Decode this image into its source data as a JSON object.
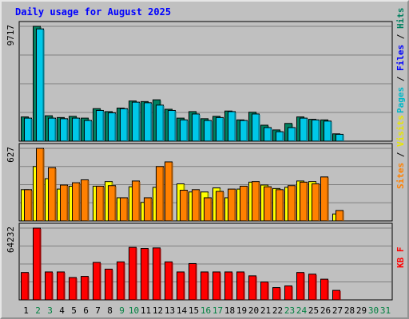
{
  "chart_data": {
    "type": "bar",
    "title": "Daily usage for August 2025",
    "days": [
      {
        "label": "1",
        "weekend": false
      },
      {
        "label": "2",
        "weekend": true
      },
      {
        "label": "3",
        "weekend": true
      },
      {
        "label": "4",
        "weekend": false
      },
      {
        "label": "5",
        "weekend": false
      },
      {
        "label": "6",
        "weekend": false
      },
      {
        "label": "7",
        "weekend": false
      },
      {
        "label": "8",
        "weekend": false
      },
      {
        "label": "9",
        "weekend": true
      },
      {
        "label": "10",
        "weekend": true
      },
      {
        "label": "11",
        "weekend": false
      },
      {
        "label": "12",
        "weekend": false
      },
      {
        "label": "13",
        "weekend": false
      },
      {
        "label": "14",
        "weekend": false
      },
      {
        "label": "15",
        "weekend": false
      },
      {
        "label": "16",
        "weekend": true
      },
      {
        "label": "17",
        "weekend": true
      },
      {
        "label": "18",
        "weekend": false
      },
      {
        "label": "19",
        "weekend": false
      },
      {
        "label": "20",
        "weekend": false
      },
      {
        "label": "21",
        "weekend": false
      },
      {
        "label": "22",
        "weekend": false
      },
      {
        "label": "23",
        "weekend": true
      },
      {
        "label": "24",
        "weekend": true
      },
      {
        "label": "25",
        "weekend": false
      },
      {
        "label": "26",
        "weekend": false
      },
      {
        "label": "27",
        "weekend": false
      },
      {
        "label": "28",
        "weekend": false
      },
      {
        "label": "29",
        "weekend": false
      },
      {
        "label": "30",
        "weekend": true
      },
      {
        "label": "31",
        "weekend": true
      }
    ],
    "panels": [
      {
        "id": "hits-files-pages",
        "max_label": "9717",
        "ymax": 9717,
        "legend": [
          {
            "text": "Pages",
            "color": "#00b8c8"
          },
          {
            "text": "Files",
            "color": "#0000ff"
          },
          {
            "text": "Hits",
            "color": "#008060"
          }
        ],
        "series": [
          {
            "name": "Hits",
            "color": "#008060",
            "values": [
              2050,
              9717,
              2150,
              2000,
              2100,
              1950,
              2750,
              2500,
              2800,
              3400,
              3350,
              3500,
              2700,
              1950,
              2500,
              1900,
              2100,
              2550,
              1800,
              2450,
              1350,
              950,
              1500,
              2050,
              1850,
              1800,
              620,
              0,
              0,
              0,
              0
            ]
          },
          {
            "name": "Files",
            "color": "#00c8e8",
            "values": [
              1950,
              9500,
              1950,
              1900,
              1950,
              1750,
              2600,
              2400,
              2750,
              3300,
              3250,
              3050,
              2600,
              1800,
              2300,
              1750,
              2000,
              2500,
              1750,
              2300,
              1150,
              800,
              1150,
              1950,
              1800,
              1700,
              580,
              0,
              0,
              0,
              0
            ]
          },
          {
            "name": "Pages",
            "color": "#00b8c8",
            "values": [
              0,
              0,
              0,
              0,
              0,
              0,
              0,
              0,
              0,
              0,
              0,
              0,
              0,
              0,
              0,
              0,
              0,
              0,
              0,
              0,
              0,
              0,
              0,
              0,
              0,
              0,
              0,
              0,
              0,
              0,
              0
            ]
          }
        ]
      },
      {
        "id": "visits-sites",
        "max_label": "627",
        "ymax": 627,
        "legend": [
          {
            "text": "Sites",
            "color": "#ff8000"
          },
          {
            "text": "Visits",
            "color": "#e8e800"
          }
        ],
        "series": [
          {
            "name": "Visits",
            "color": "#ffff00",
            "values": [
              270,
              470,
              365,
              275,
              300,
              0,
              300,
              340,
              200,
              295,
              160,
              290,
              0,
              320,
              250,
              250,
              285,
              200,
              275,
              335,
              310,
              280,
              290,
              345,
              340,
              0,
              60,
              0,
              0,
              0,
              0
            ]
          },
          {
            "name": "Sites",
            "color": "#ff8000",
            "values": [
              270,
              627,
              460,
              310,
              330,
              355,
              300,
              305,
              200,
              345,
              200,
              470,
              510,
              265,
              270,
              200,
              255,
              275,
              300,
              340,
              295,
              270,
              305,
              335,
              320,
              380,
              90,
              0,
              0,
              0,
              0
            ]
          }
        ]
      },
      {
        "id": "kbytes",
        "max_label": "64232",
        "ymax": 64232,
        "legend": [
          {
            "text": "KB F",
            "color": "#ff0000"
          }
        ],
        "series": [
          {
            "name": "KB F",
            "color": "#ff0000",
            "values": [
              24500,
              64232,
              25000,
              25000,
              20000,
              21000,
              33500,
              27500,
              34000,
              47000,
              46000,
              46500,
              34000,
              25000,
              32500,
              25000,
              25000,
              25000,
              25000,
              21500,
              16000,
              11000,
              12500,
              24500,
              23000,
              18500,
              8500,
              0,
              0,
              0,
              0
            ]
          }
        ]
      }
    ]
  },
  "colors": {
    "background": "#c0c0c0",
    "title": "#0000ff",
    "weekday_label": "#000000",
    "weekend_label": "#008040",
    "grid": "#808080"
  }
}
